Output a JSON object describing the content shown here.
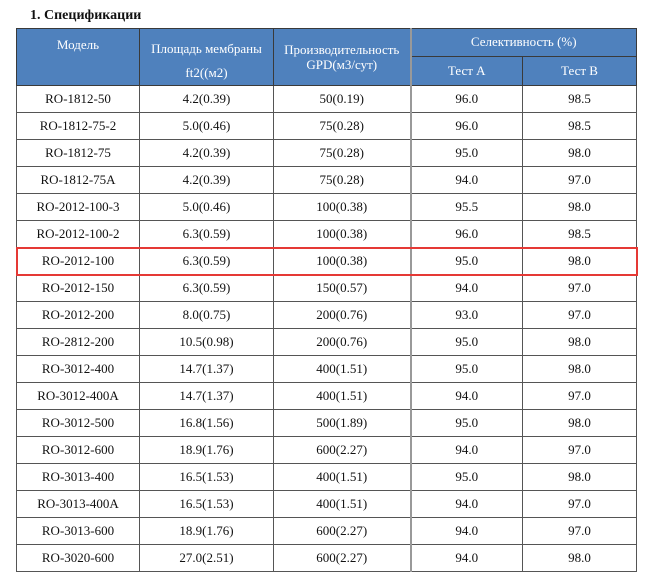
{
  "title": "1.  Спецификации",
  "headers": {
    "model": "Модель",
    "area": "Площадь мембраны",
    "area_unit": "ft2((м2)",
    "flow": "Производительность",
    "flow_unit": "GPD(м3/сут)",
    "selectivity": "Селективность (%)",
    "test_a": "Тест A",
    "test_b": "Тест B"
  },
  "highlight_color": "#e53935",
  "header_color": "#4f81bd",
  "rows": [
    [
      "RO-1812-50",
      "4.2(0.39)",
      "50(0.19)",
      "96.0",
      "98.5"
    ],
    [
      "RO-1812-75-2",
      "5.0(0.46)",
      "75(0.28)",
      "96.0",
      "98.5"
    ],
    [
      "RO-1812-75",
      "4.2(0.39)",
      "75(0.28)",
      "95.0",
      "98.0"
    ],
    [
      "RO-1812-75A",
      "4.2(0.39)",
      "75(0.28)",
      "94.0",
      "97.0"
    ],
    [
      "RO-2012-100-3",
      "5.0(0.46)",
      "100(0.38)",
      "95.5",
      "98.0"
    ],
    [
      "RO-2012-100-2",
      "6.3(0.59)",
      "100(0.38)",
      "96.0",
      "98.5"
    ],
    [
      "RO-2012-100",
      "6.3(0.59)",
      "100(0.38)",
      "95.0",
      "98.0"
    ],
    [
      "RO-2012-150",
      "6.3(0.59)",
      "150(0.57)",
      "94.0",
      "97.0"
    ],
    [
      "RO-2012-200",
      "8.0(0.75)",
      "200(0.76)",
      "93.0",
      "97.0"
    ],
    [
      "RO-2812-200",
      "10.5(0.98)",
      "200(0.76)",
      "95.0",
      "98.0"
    ],
    [
      "RO-3012-400",
      "14.7(1.37)",
      "400(1.51)",
      "95.0",
      "98.0"
    ],
    [
      "RO-3012-400A",
      "14.7(1.37)",
      "400(1.51)",
      "94.0",
      "97.0"
    ],
    [
      "RO-3012-500",
      "16.8(1.56)",
      "500(1.89)",
      "95.0",
      "98.0"
    ],
    [
      "RO-3012-600",
      "18.9(1.76)",
      "600(2.27)",
      "94.0",
      "97.0"
    ],
    [
      "RO-3013-400",
      "16.5(1.53)",
      "400(1.51)",
      "95.0",
      "98.0"
    ],
    [
      "RO-3013-400A",
      "16.5(1.53)",
      "400(1.51)",
      "94.0",
      "97.0"
    ],
    [
      "RO-3013-600",
      "18.9(1.76)",
      "600(2.27)",
      "94.0",
      "97.0"
    ],
    [
      "RO-3020-600",
      "27.0(2.51)",
      "600(2.27)",
      "94.0",
      "98.0"
    ]
  ],
  "highlighted_row": 6
}
